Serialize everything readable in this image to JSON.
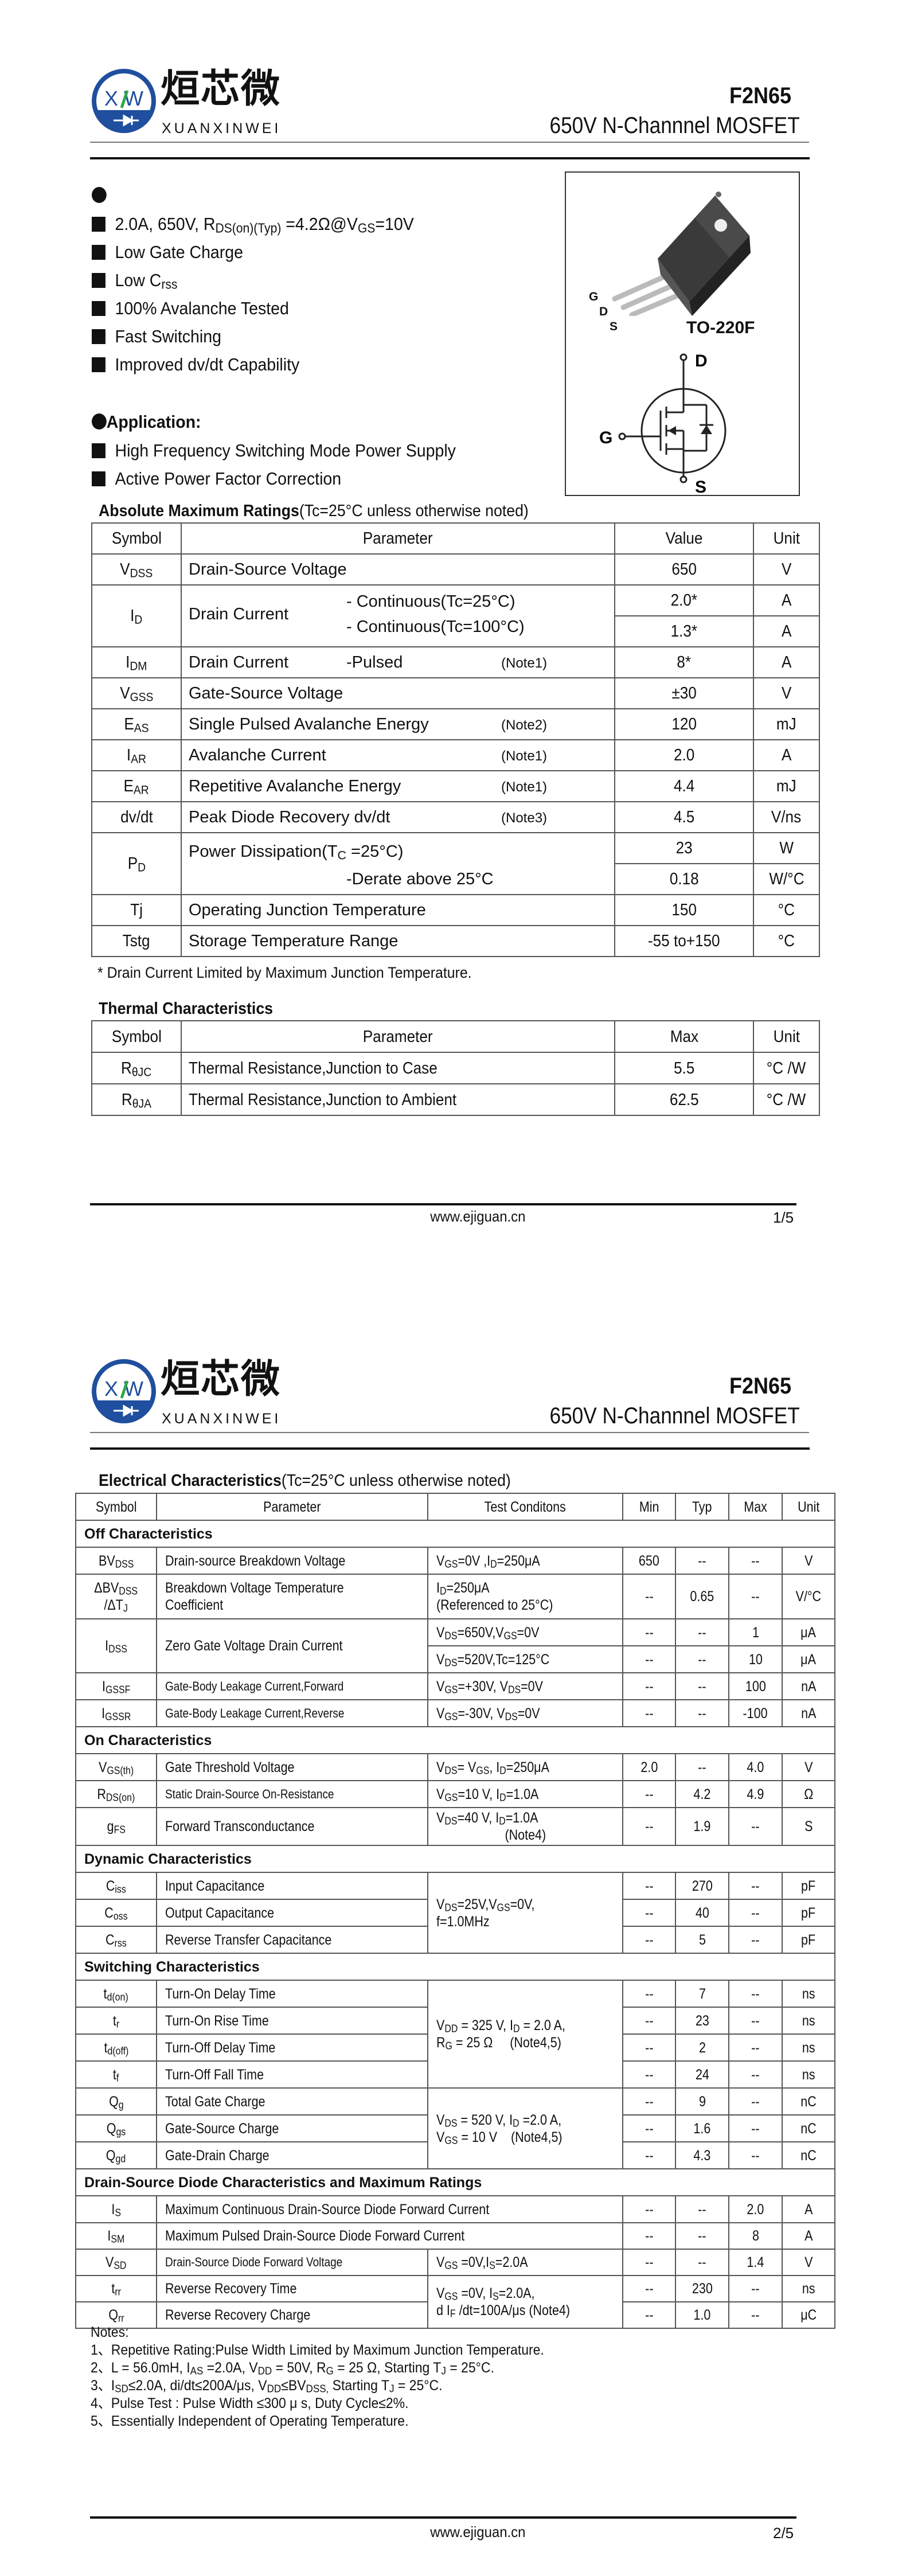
{
  "header": {
    "logo_cn": "烜芯微",
    "logo_en": "XUANXINWEI",
    "logo_mark": "XW",
    "part_number": "F2N65",
    "subtitle": "650V N-Channnel MOSFET"
  },
  "colors": {
    "logo_blue": "#1f4f9e",
    "logo_green": "#2ea84a",
    "border": "#555555"
  },
  "features": {
    "items": [
      "2.0A, 650V, R_{DS(on)(Typ)} =4.2Ω@V_{GS}=10V",
      "Low Gate Charge",
      "Low C_{rss}",
      "100% Avalanche Tested",
      "Fast Switching",
      "Improved dv/dt Capability"
    ],
    "application_title": "Application:",
    "applications": [
      "High Frequency Switching Mode Power Supply",
      "Active Power Factor Correction"
    ]
  },
  "package": {
    "name": "TO-220F",
    "pins": [
      "G",
      "D",
      "S"
    ],
    "symbol_labels": {
      "d": "D",
      "g": "G",
      "s": "S"
    }
  },
  "abs_max": {
    "title": "Absolute Maximum Ratings",
    "title_note": "(Tc=25°C unless otherwise noted)",
    "headers": [
      "Symbol",
      "Parameter",
      "Value",
      "Unit"
    ],
    "rows": [
      {
        "sym": "V_{DSS}",
        "param": "Drain-Source Voltage",
        "values": [
          [
            "650",
            "V"
          ]
        ]
      },
      {
        "sym": "I_{D}",
        "param": "Drain Current",
        "sub": [
          "- Continuous(Tc=25°C)",
          "- Continuous(Tc=100°C)"
        ],
        "values": [
          [
            "2.0*",
            "A"
          ],
          [
            "1.3*",
            "A"
          ]
        ]
      },
      {
        "sym": "I_{DM}",
        "param": "Drain Current",
        "sub": [
          "-Pulsed"
        ],
        "note": "(Note1)",
        "values": [
          [
            "8*",
            "A"
          ]
        ]
      },
      {
        "sym": "V_{GSS}",
        "param": "Gate-Source Voltage",
        "values": [
          [
            "±30",
            "V"
          ]
        ]
      },
      {
        "sym": "E_{AS}",
        "param": "Single Pulsed Avalanche Energy",
        "note": "(Note2)",
        "values": [
          [
            "120",
            "mJ"
          ]
        ]
      },
      {
        "sym": "I_{AR}",
        "param": "Avalanche Current",
        "note": "(Note1)",
        "values": [
          [
            "2.0",
            "A"
          ]
        ]
      },
      {
        "sym": "E_{AR}",
        "param": "Repetitive Avalanche Energy",
        "note": "(Note1)",
        "values": [
          [
            "4.4",
            "mJ"
          ]
        ]
      },
      {
        "sym": "dv/dt",
        "param": "Peak Diode Recovery dv/dt",
        "note": "(Note3)",
        "values": [
          [
            "4.5",
            "V/ns"
          ]
        ]
      },
      {
        "sym": "P_{D}",
        "param": "Power Dissipation(T_{C} =25°C)",
        "sub2": "-Derate above 25°C",
        "values": [
          [
            "23",
            "W"
          ],
          [
            "0.18",
            "W/°C"
          ]
        ]
      },
      {
        "sym": "Tj",
        "param": "Operating Junction Temperature",
        "values": [
          [
            "150",
            "°C"
          ]
        ]
      },
      {
        "sym": "Tstg",
        "param": "Storage Temperature Range",
        "values": [
          [
            "-55 to+150",
            "°C"
          ]
        ]
      }
    ],
    "footnote": "* Drain Current Limited by Maximum Junction Temperature."
  },
  "thermal": {
    "title": "Thermal Characteristics",
    "headers": [
      "Symbol",
      "Parameter",
      "Max",
      "Unit"
    ],
    "rows": [
      {
        "sym": "R_{θJC}",
        "param": "Thermal Resistance,Junction to Case",
        "max": "5.5",
        "unit": "°C /W"
      },
      {
        "sym": "R_{θJA}",
        "param": "Thermal Resistance,Junction to Ambient",
        "max": "62.5",
        "unit": "°C /W"
      }
    ]
  },
  "electrical": {
    "title": "Electrical Characteristics",
    "title_note": "(Tc=25°C unless otherwise noted)",
    "headers": [
      "Symbol",
      "Parameter",
      "Test Conditons",
      "Min",
      "Typ",
      "Max",
      "Unit"
    ],
    "rows": [
      {
        "section": "Off Characteristics"
      },
      {
        "sym": "BV_{DSS}",
        "param": "Drain-source Breakdown Voltage",
        "cond": "V_{GS}=0V ,I_{D}=250μA",
        "min": "650",
        "typ": "--",
        "max": "--",
        "unit": "V"
      },
      {
        "sym": "ΔBV_{DSS}\n/ΔT_{J}",
        "param": "Breakdown Voltage Temperature\nCoefficient",
        "cond": "I_{D}=250μA\n(Referenced to 25°C)",
        "min": "--",
        "typ": "0.65",
        "max": "--",
        "unit": "V/°C"
      },
      {
        "sym": "I_{DSS}",
        "param": "Zero Gate Voltage Drain Current",
        "sym_rows": 2,
        "cond": "V_{DS}=650V,V_{GS}=0V",
        "min": "--",
        "typ": "--",
        "max": "1",
        "unit": "μA"
      },
      {
        "cont": true,
        "cond": "V_{DS}=520V,Tc=125°C",
        "min": "--",
        "typ": "--",
        "max": "10",
        "unit": "μA"
      },
      {
        "sym": "I_{GSSF}",
        "param": "Gate-Body Leakage Current,Forward",
        "cond": "V_{GS}=+30V, V_{DS}=0V",
        "min": "--",
        "typ": "--",
        "max": "100",
        "unit": "nA",
        "small": true
      },
      {
        "sym": "I_{GSSR}",
        "param": "Gate-Body Leakage Current,Reverse",
        "cond": "V_{GS}=-30V, V_{DS}=0V",
        "min": "--",
        "typ": "--",
        "max": "-100",
        "unit": "nA",
        "small": true
      },
      {
        "section": "On Characteristics"
      },
      {
        "sym": "V_{GS(th)}",
        "param": "Gate Threshold Voltage",
        "cond": "V_{DS}= V_{GS}, I_{D}=250μA",
        "min": "2.0",
        "typ": "--",
        "max": "4.0",
        "unit": "V"
      },
      {
        "sym": "R_{DS(on)}",
        "param": "Static Drain-Source On-Resistance",
        "cond": "V_{GS}=10 V, I_{D}=1.0A",
        "min": "--",
        "typ": "4.2",
        "max": "4.9",
        "unit": "Ω",
        "small": true
      },
      {
        "sym": "g_{FS}",
        "param": "Forward Transconductance",
        "cond": "V_{DS}=40 V, I_{D}=1.0A\n                    (Note4)",
        "min": "--",
        "typ": "1.9",
        "max": "--",
        "unit": "S"
      },
      {
        "section": "Dynamic Characteristics"
      },
      {
        "sym": "C_{iss}",
        "param": "Input Capacitance",
        "cond": "V_{DS}=25V,V_{GS}=0V,\nf=1.0MHz",
        "cond_rows": 3,
        "min": "--",
        "typ": "270",
        "max": "--",
        "unit": "pF"
      },
      {
        "sym": "C_{oss}",
        "param": "Output Capacitance",
        "min": "--",
        "typ": "40",
        "max": "--",
        "unit": "pF"
      },
      {
        "sym": "C_{rss}",
        "param": "Reverse Transfer Capacitance",
        "min": "--",
        "typ": "5",
        "max": "--",
        "unit": "pF"
      },
      {
        "section": "Switching Characteristics"
      },
      {
        "sym": "t_{d(on)}",
        "param": "Turn-On Delay Time",
        "cond": "V_{DD} = 325 V, I_{D} = 2.0 A,\nR_{G} = 25 Ω     (Note4,5)",
        "cond_rows": 4,
        "min": "--",
        "typ": "7",
        "max": "--",
        "unit": "ns"
      },
      {
        "sym": "t_{r}",
        "param": "Turn-On Rise Time",
        "min": "--",
        "typ": "23",
        "max": "--",
        "unit": "ns"
      },
      {
        "sym": "t_{d(off)}",
        "param": "Turn-Off Delay Time",
        "min": "--",
        "typ": "2",
        "max": "--",
        "unit": "ns"
      },
      {
        "sym": "t_{f}",
        "param": "Turn-Off Fall Time",
        "min": "--",
        "typ": "24",
        "max": "--",
        "unit": "ns"
      },
      {
        "sym": "Q_{g}",
        "param": "Total Gate Charge",
        "cond": "V_{DS} = 520 V, I_{D} =2.0 A,\nV_{GS} = 10 V    (Note4,5)",
        "cond_rows": 3,
        "min": "--",
        "typ": "9",
        "max": "--",
        "unit": "nC"
      },
      {
        "sym": "Q_{gs}",
        "param": "Gate-Source Charge",
        "min": "--",
        "typ": "1.6",
        "max": "--",
        "unit": "nC"
      },
      {
        "sym": "Q_{gd}",
        "param": "Gate-Drain Charge",
        "min": "--",
        "typ": "4.3",
        "max": "--",
        "unit": "nC"
      },
      {
        "section": "Drain-Source Diode Characteristics and Maximum Ratings"
      },
      {
        "sym": "I_{S}",
        "param": "Maximum Continuous Drain-Source Diode Forward Current",
        "wide": true,
        "min": "--",
        "typ": "--",
        "max": "2.0",
        "unit": "A"
      },
      {
        "sym": "I_{SM}",
        "param": "Maximum Pulsed Drain-Source Diode Forward Current",
        "wide": true,
        "min": "--",
        "typ": "--",
        "max": "8",
        "unit": "A"
      },
      {
        "sym": "V_{SD}",
        "param": "Drain-Source Diode Forward Voltage",
        "cond": "V_{GS} =0V,I_{S}=2.0A",
        "min": "--",
        "typ": "--",
        "max": "1.4",
        "unit": "V",
        "small": true
      },
      {
        "sym": "t_{rr}",
        "param": "Reverse Recovery Time",
        "cond": "V_{GS} =0V, I_{S}=2.0A,\nd I_{F} /dt=100A/μs (Note4)",
        "cond_rows": 2,
        "min": "--",
        "typ": "230",
        "max": "--",
        "unit": "ns"
      },
      {
        "sym": "Q_{rr}",
        "param": "Reverse Recovery Charge",
        "min": "--",
        "typ": "1.0",
        "max": "--",
        "unit": "μC"
      }
    ]
  },
  "notes": {
    "title": "Notes:",
    "items": [
      "1、Repetitive Rating:Pulse Width Limited by Maximum Junction Temperature.",
      "2、L = 56.0mH, I_{AS} =2.0A, V_{DD} = 50V, R_{G} = 25 Ω, Starting T_{J} = 25°C.",
      "3、I_{SD}≤2.0A, di/dt≤200A/μs, V_{DD}≤BV_{DSS,} Starting T_{J} = 25°C.",
      "4、Pulse Test : Pulse Width ≤300 μ s, Duty Cycle≤2%.",
      "5、Essentially Independent of Operating Temperature."
    ]
  },
  "footer": {
    "url": "www.ejiguan.cn",
    "pages": [
      "1/5",
      "2/5"
    ]
  }
}
